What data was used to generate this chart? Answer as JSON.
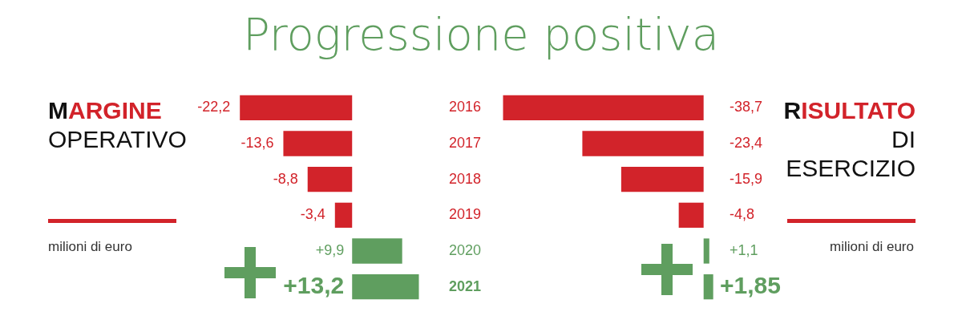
{
  "chart_data": [
    {
      "type": "bar",
      "orientation": "horizontal",
      "title": "Progressione positiva",
      "ylabel": "MARGINE OPERATIVO",
      "annotations": [
        "milioni di euro"
      ],
      "categories": [
        "2016",
        "2017",
        "2018",
        "2019",
        "2020",
        "2021"
      ],
      "values": [
        -22.2,
        -13.6,
        -8.8,
        -3.4,
        9.9,
        13.2
      ],
      "colors": [
        "#d2232a",
        "#d2232a",
        "#d2232a",
        "#d2232a",
        "#5f9e5f",
        "#5f9e5f"
      ],
      "value_labels": [
        "-22,2",
        "-13,6",
        "-8,8",
        "-3,4",
        "+9,9",
        "+13,2"
      ]
    },
    {
      "type": "bar",
      "orientation": "horizontal",
      "ylabel": "RISULTATO DI ESERCIZIO",
      "annotations": [
        "milioni di euro"
      ],
      "categories": [
        "2016",
        "2017",
        "2018",
        "2019",
        "2020",
        "2021"
      ],
      "values": [
        -38.7,
        -23.4,
        -15.9,
        -4.8,
        1.1,
        1.85
      ],
      "colors": [
        "#d2232a",
        "#d2232a",
        "#d2232a",
        "#d2232a",
        "#5f9e5f",
        "#5f9e5f"
      ],
      "value_labels": [
        "-38,7",
        "-23,4",
        "-15,9",
        "-4,8",
        "+1,1",
        "+1,85"
      ],
      "tick_labels": false
    }
  ]
}
